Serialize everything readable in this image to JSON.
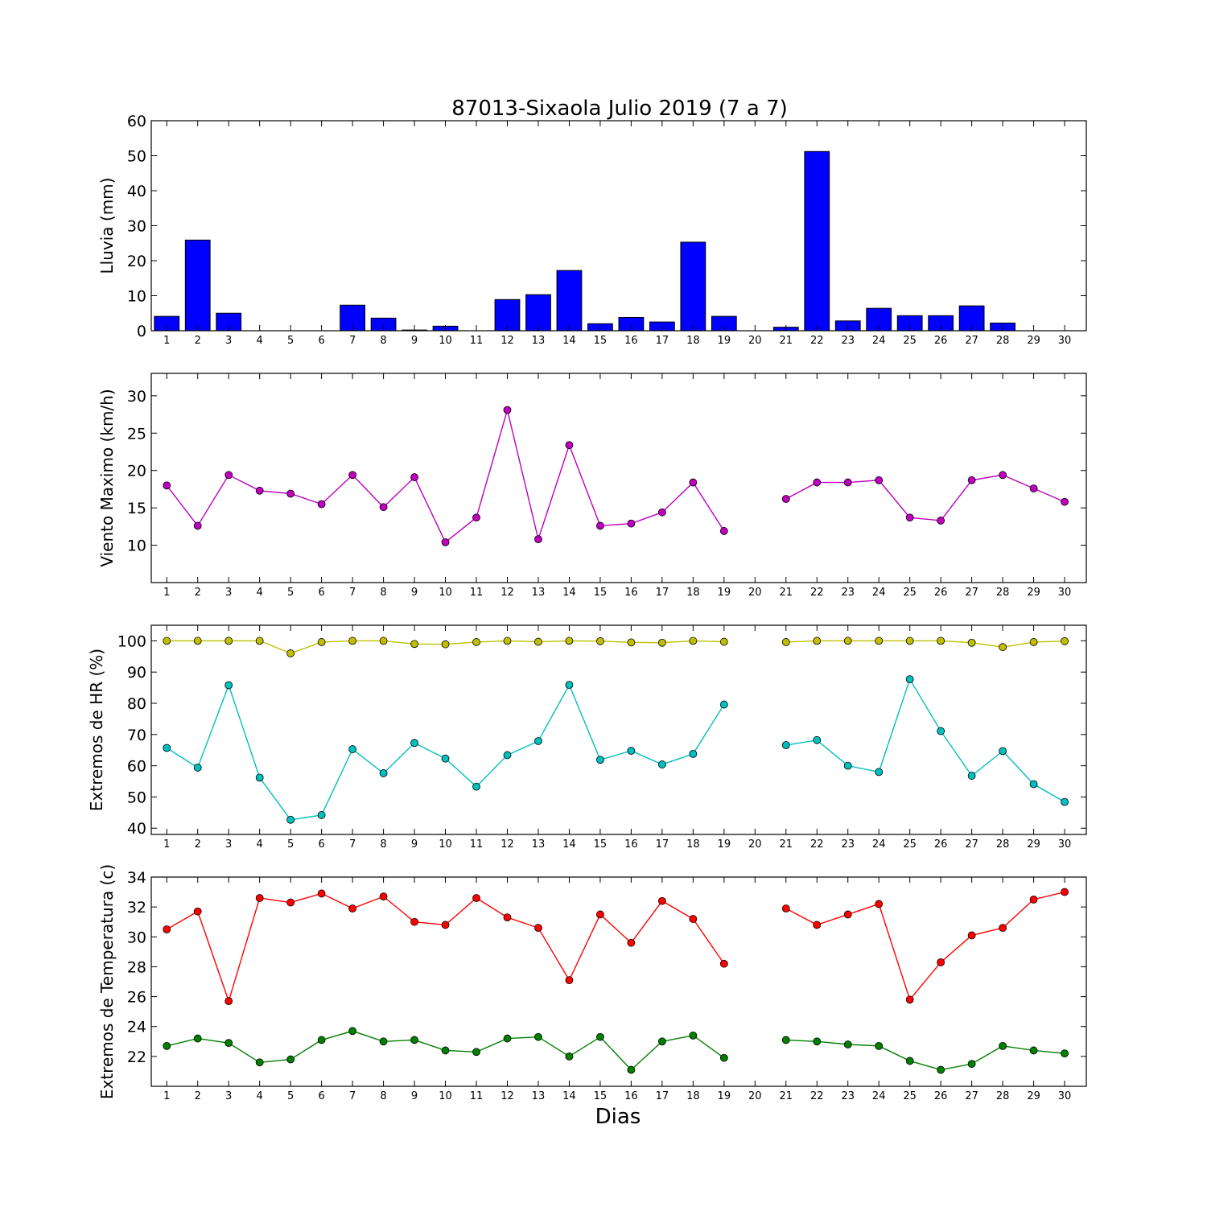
{
  "figure": {
    "title": "87013-Sixaola Julio 2019  (7 a 7)",
    "xlabel": "Dias"
  },
  "chart_data": [
    {
      "type": "bar",
      "ylabel": "Lluvia (mm)",
      "ylim": [
        0,
        60
      ],
      "yticks": [
        0,
        10,
        20,
        30,
        40,
        50,
        60
      ],
      "categories": [
        1,
        2,
        3,
        4,
        5,
        6,
        7,
        8,
        9,
        10,
        11,
        12,
        13,
        14,
        15,
        16,
        17,
        18,
        19,
        20,
        21,
        22,
        23,
        24,
        25,
        26,
        27,
        28,
        29,
        30
      ],
      "series": [
        {
          "color": "#0000ff",
          "values": [
            4.1,
            25.9,
            5.0,
            0,
            0,
            0,
            7.3,
            3.6,
            0.2,
            1.3,
            0,
            8.9,
            10.3,
            17.2,
            2.0,
            3.8,
            2.5,
            25.3,
            4.1,
            null,
            1.0,
            51.2,
            2.8,
            6.4,
            4.3,
            4.3,
            7.1,
            2.2,
            0,
            0
          ]
        }
      ],
      "grid": false
    },
    {
      "type": "line",
      "ylabel": "Viento Maximo (km/h)",
      "ylim": [
        5,
        33
      ],
      "yticks": [
        10,
        15,
        20,
        25,
        30
      ],
      "categories": [
        1,
        2,
        3,
        4,
        5,
        6,
        7,
        8,
        9,
        10,
        11,
        12,
        13,
        14,
        15,
        16,
        17,
        18,
        19,
        20,
        21,
        22,
        23,
        24,
        25,
        26,
        27,
        28,
        29,
        30
      ],
      "series": [
        {
          "color": "#bf00bf",
          "values": [
            18.0,
            12.6,
            19.4,
            17.3,
            16.9,
            15.5,
            19.4,
            15.1,
            19.1,
            10.4,
            13.7,
            28.1,
            10.8,
            23.4,
            12.6,
            12.9,
            14.4,
            18.4,
            11.9,
            null,
            16.2,
            18.4,
            18.4,
            18.7,
            13.7,
            13.3,
            18.7,
            19.4,
            17.6,
            15.8
          ]
        }
      ],
      "grid": false
    },
    {
      "type": "line",
      "ylabel": "Extremos de HR (%)",
      "ylim": [
        38,
        105
      ],
      "yticks": [
        40,
        50,
        60,
        70,
        80,
        90,
        100
      ],
      "categories": [
        1,
        2,
        3,
        4,
        5,
        6,
        7,
        8,
        9,
        10,
        11,
        12,
        13,
        14,
        15,
        16,
        17,
        18,
        19,
        20,
        21,
        22,
        23,
        24,
        25,
        26,
        27,
        28,
        29,
        30
      ],
      "series": [
        {
          "color": "#bfbf00",
          "values": [
            100,
            100,
            100,
            100,
            96,
            99.6,
            100,
            100,
            99,
            98.9,
            99.6,
            100,
            99.7,
            100,
            99.9,
            99.5,
            99.4,
            100,
            99.7,
            null,
            99.6,
            100,
            100,
            100,
            100,
            100,
            99.4,
            98,
            99.6,
            99.9
          ]
        },
        {
          "color": "#00bfbf",
          "values": [
            65.7,
            59.4,
            85.8,
            56.2,
            42.7,
            44.2,
            65.3,
            57.6,
            67.3,
            62.3,
            53.3,
            63.4,
            67.9,
            85.9,
            61.9,
            64.8,
            60.4,
            63.8,
            79.6,
            null,
            66.6,
            68.2,
            60.0,
            58.0,
            87.7,
            71.1,
            56.8,
            64.7,
            54.1,
            48.4
          ]
        }
      ],
      "grid": false
    },
    {
      "type": "line",
      "ylabel": "Extremos de Temperatura (c)",
      "ylim": [
        20,
        34
      ],
      "yticks": [
        22,
        24,
        26,
        28,
        30,
        32,
        34
      ],
      "categories": [
        1,
        2,
        3,
        4,
        5,
        6,
        7,
        8,
        9,
        10,
        11,
        12,
        13,
        14,
        15,
        16,
        17,
        18,
        19,
        20,
        21,
        22,
        23,
        24,
        25,
        26,
        27,
        28,
        29,
        30
      ],
      "series": [
        {
          "color": "#ff0000",
          "values": [
            30.5,
            31.7,
            25.7,
            32.6,
            32.3,
            32.9,
            31.9,
            32.7,
            31.0,
            30.8,
            32.6,
            31.3,
            30.6,
            27.1,
            31.5,
            29.6,
            32.4,
            31.2,
            28.2,
            null,
            31.9,
            30.8,
            31.5,
            32.2,
            25.8,
            28.3,
            30.1,
            30.6,
            32.5,
            33.0
          ]
        },
        {
          "color": "#008000",
          "values": [
            22.7,
            23.2,
            22.9,
            21.6,
            21.8,
            23.1,
            23.7,
            23.0,
            23.1,
            22.4,
            22.3,
            23.2,
            23.3,
            22.0,
            23.3,
            21.1,
            23.0,
            23.4,
            21.9,
            null,
            23.1,
            23.0,
            22.8,
            22.7,
            21.7,
            21.1,
            21.5,
            22.7,
            22.4,
            22.2
          ]
        }
      ],
      "grid": false
    }
  ]
}
